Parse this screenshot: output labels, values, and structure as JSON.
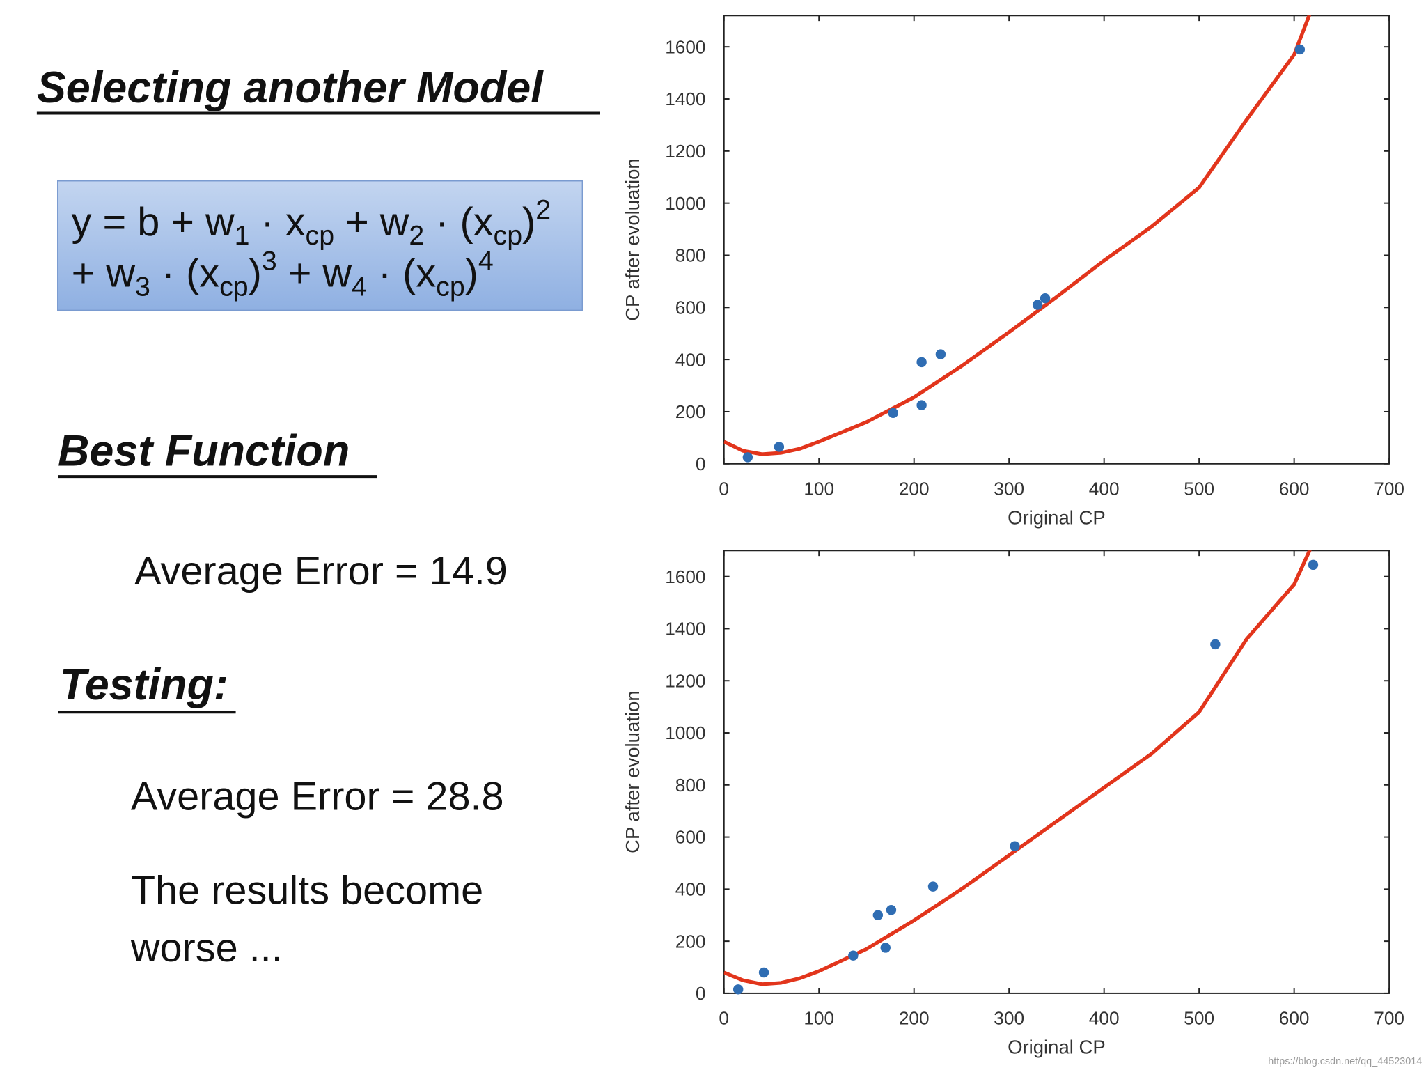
{
  "slide": {
    "title": "Selecting another Model",
    "formula": [
      [
        {
          "text": "y = b + w"
        },
        {
          "sub": "1"
        },
        {
          "text": " · x"
        },
        {
          "sub": "cp"
        },
        {
          "text": " + w"
        },
        {
          "sub": "2"
        },
        {
          "text": " · (x"
        },
        {
          "sub": "cp"
        },
        {
          "text": ")"
        },
        {
          "sup": "2"
        }
      ],
      [
        {
          "text": "+ w"
        },
        {
          "sub": "3"
        },
        {
          "text": " · (x"
        },
        {
          "sub": "cp"
        },
        {
          "text": ")"
        },
        {
          "sup": "3"
        },
        {
          "text": " + w"
        },
        {
          "sub": "4"
        },
        {
          "text": " · (x"
        },
        {
          "sub": "cp"
        },
        {
          "text": ")"
        },
        {
          "sup": "4"
        }
      ]
    ],
    "best_heading": "Best Function",
    "best_error": "Average Error = 14.9",
    "testing_heading": "Testing:",
    "testing_error": "Average Error = 28.8",
    "conclusion": [
      "The results become",
      "worse ..."
    ],
    "watermark": "https://blog.csdn.net/qq_44523014"
  },
  "chart_data": [
    {
      "type": "scatter",
      "xlabel": "Original CP",
      "ylabel": "CP after evoluation",
      "xlim": [
        0,
        700
      ],
      "ylim": [
        0,
        1720
      ],
      "xticks": [
        0,
        100,
        200,
        300,
        400,
        500,
        600,
        700
      ],
      "yticks": [
        0,
        200,
        400,
        600,
        800,
        1000,
        1200,
        1400,
        1600
      ],
      "series": [
        {
          "type": "scatter",
          "color": "#2f6db3",
          "x": [
            25,
            58,
            178,
            208,
            208,
            228,
            330,
            338,
            606
          ],
          "values": [
            25,
            65,
            195,
            390,
            225,
            420,
            610,
            635,
            1590
          ]
        },
        {
          "type": "line",
          "color": "#e2351c",
          "x": [
            0,
            20,
            40,
            60,
            80,
            100,
            150,
            200,
            250,
            300,
            350,
            400,
            450,
            500,
            550,
            600,
            620
          ],
          "values": [
            85,
            50,
            37,
            42,
            58,
            85,
            160,
            255,
            375,
            505,
            640,
            780,
            910,
            1060,
            1320,
            1570,
            1760
          ]
        }
      ]
    },
    {
      "type": "scatter",
      "xlabel": "Original CP",
      "ylabel": "CP after evoluation",
      "xlim": [
        0,
        700
      ],
      "ylim": [
        0,
        1700
      ],
      "xticks": [
        0,
        100,
        200,
        300,
        400,
        500,
        600,
        700
      ],
      "yticks": [
        0,
        200,
        400,
        600,
        800,
        1000,
        1200,
        1400,
        1600
      ],
      "series": [
        {
          "type": "scatter",
          "color": "#2f6db3",
          "x": [
            15,
            42,
            136,
            162,
            170,
            176,
            220,
            306,
            517,
            620
          ],
          "values": [
            15,
            80,
            145,
            300,
            175,
            320,
            410,
            565,
            1340,
            1645
          ]
        },
        {
          "type": "line",
          "color": "#e2351c",
          "x": [
            0,
            20,
            40,
            60,
            80,
            100,
            150,
            200,
            250,
            300,
            350,
            400,
            450,
            500,
            550,
            600,
            620
          ],
          "values": [
            80,
            50,
            35,
            40,
            58,
            85,
            170,
            280,
            400,
            530,
            660,
            790,
            920,
            1080,
            1360,
            1570,
            1730
          ]
        }
      ]
    }
  ]
}
